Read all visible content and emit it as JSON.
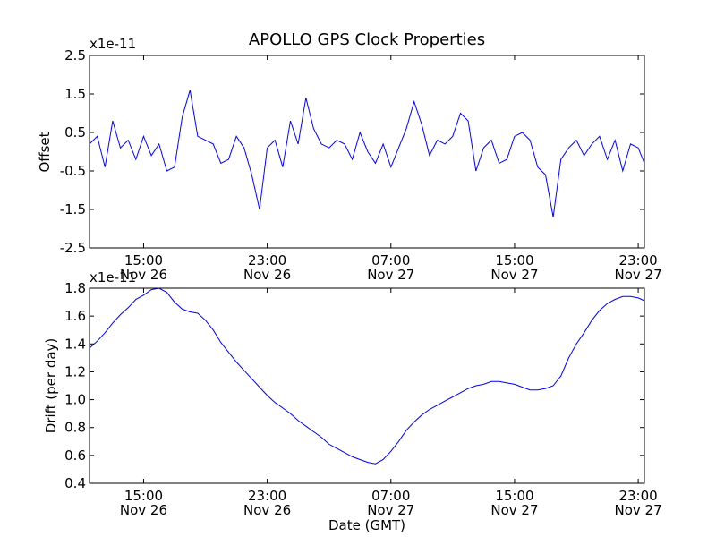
{
  "chart_data": [
    {
      "type": "line",
      "title": "APOLLO GPS Clock Properties",
      "ylabel": "Offset",
      "xlabel": "",
      "y_multiplier": "x1e-11",
      "x_ticks": [
        {
          "value": 15,
          "time": "15:00",
          "date": "Nov 26"
        },
        {
          "value": 23,
          "time": "23:00",
          "date": "Nov 26"
        },
        {
          "value": 31,
          "time": "07:00",
          "date": "Nov 27"
        },
        {
          "value": 39,
          "time": "15:00",
          "date": "Nov 27"
        },
        {
          "value": 47,
          "time": "23:00",
          "date": "Nov 27"
        }
      ],
      "xlim": [
        11.5,
        47.4
      ],
      "ylim": [
        -2.5,
        2.5
      ],
      "y_ticks": [
        "-2.5",
        "-1.5",
        "-0.5",
        "0.5",
        "1.5",
        "2.5"
      ],
      "y_tick_values": [
        -2.5,
        -1.5,
        -0.5,
        0.5,
        1.5,
        2.5
      ],
      "color": "#0000ff",
      "series": [
        {
          "x": [
            11.5,
            12.0,
            12.5,
            13.0,
            13.5,
            14.0,
            14.5,
            15.0,
            15.5,
            16.0,
            16.5,
            17.0,
            17.5,
            18.0,
            18.5,
            19.0,
            19.5,
            20.0,
            20.5,
            21.0,
            21.5,
            22.0,
            22.5,
            23.0,
            23.5,
            24.0,
            24.5,
            25.0,
            25.5,
            26.0,
            26.5,
            27.0,
            27.5,
            28.0,
            28.5,
            29.0,
            29.5,
            30.0,
            30.5,
            31.0,
            31.5,
            32.0,
            32.5,
            33.0,
            33.5,
            34.0,
            34.5,
            35.0,
            35.5,
            36.0,
            36.5,
            37.0,
            37.5,
            38.0,
            38.5,
            39.0,
            39.5,
            40.0,
            40.5,
            41.0,
            41.5,
            42.0,
            42.5,
            43.0,
            43.5,
            44.0,
            44.5,
            45.0,
            45.5,
            46.0,
            46.5,
            47.0,
            47.4
          ],
          "values": [
            0.2,
            0.4,
            -0.4,
            0.8,
            0.1,
            0.3,
            -0.2,
            0.4,
            -0.1,
            0.2,
            -0.5,
            -0.4,
            0.9,
            1.6,
            0.4,
            0.3,
            0.2,
            -0.3,
            -0.2,
            0.4,
            0.1,
            -0.6,
            -1.5,
            0.1,
            0.3,
            -0.4,
            0.8,
            0.2,
            1.4,
            0.6,
            0.2,
            0.1,
            0.3,
            0.2,
            -0.2,
            0.5,
            0.0,
            -0.3,
            0.2,
            -0.4,
            0.1,
            0.6,
            1.3,
            0.7,
            -0.1,
            0.3,
            0.2,
            0.4,
            1.0,
            0.8,
            -0.5,
            0.1,
            0.3,
            -0.3,
            -0.2,
            0.4,
            0.5,
            0.3,
            -0.4,
            -0.6,
            -1.7,
            -0.2,
            0.1,
            0.3,
            -0.1,
            0.2,
            0.4,
            -0.2,
            0.3,
            -0.5,
            0.2,
            0.1,
            -0.3
          ]
        }
      ]
    },
    {
      "type": "line",
      "title": "",
      "ylabel": "Drift (per day)",
      "xlabel": "Date (GMT)",
      "y_multiplier": "x1e-11",
      "x_ticks": [
        {
          "value": 15,
          "time": "15:00",
          "date": "Nov 26"
        },
        {
          "value": 23,
          "time": "23:00",
          "date": "Nov 26"
        },
        {
          "value": 31,
          "time": "07:00",
          "date": "Nov 27"
        },
        {
          "value": 39,
          "time": "15:00",
          "date": "Nov 27"
        },
        {
          "value": 47,
          "time": "23:00",
          "date": "Nov 27"
        }
      ],
      "xlim": [
        11.5,
        47.4
      ],
      "ylim": [
        0.4,
        1.8
      ],
      "y_ticks": [
        "0.4",
        "0.6",
        "0.8",
        "1.0",
        "1.2",
        "1.4",
        "1.6",
        "1.8"
      ],
      "y_tick_values": [
        0.4,
        0.6,
        0.8,
        1.0,
        1.2,
        1.4,
        1.6,
        1.8
      ],
      "color": "#0000ff",
      "series": [
        {
          "x": [
            11.5,
            12.0,
            12.5,
            13.0,
            13.5,
            14.0,
            14.5,
            15.0,
            15.5,
            16.0,
            16.5,
            17.0,
            17.5,
            18.0,
            18.5,
            19.0,
            19.5,
            20.0,
            20.5,
            21.0,
            21.5,
            22.0,
            22.5,
            23.0,
            23.5,
            24.0,
            24.5,
            25.0,
            25.5,
            26.0,
            26.5,
            27.0,
            27.5,
            28.0,
            28.5,
            29.0,
            29.5,
            30.0,
            30.5,
            31.0,
            31.5,
            32.0,
            32.5,
            33.0,
            33.5,
            34.0,
            34.5,
            35.0,
            35.5,
            36.0,
            36.5,
            37.0,
            37.5,
            38.0,
            38.5,
            39.0,
            39.5,
            40.0,
            40.5,
            41.0,
            41.5,
            42.0,
            42.5,
            43.0,
            43.5,
            44.0,
            44.5,
            45.0,
            45.5,
            46.0,
            46.5,
            47.0,
            47.4
          ],
          "values": [
            1.37,
            1.42,
            1.48,
            1.55,
            1.61,
            1.66,
            1.72,
            1.75,
            1.79,
            1.8,
            1.77,
            1.7,
            1.65,
            1.63,
            1.62,
            1.57,
            1.5,
            1.41,
            1.34,
            1.27,
            1.21,
            1.15,
            1.09,
            1.03,
            0.98,
            0.94,
            0.9,
            0.85,
            0.81,
            0.77,
            0.73,
            0.68,
            0.65,
            0.62,
            0.59,
            0.57,
            0.55,
            0.54,
            0.57,
            0.63,
            0.7,
            0.78,
            0.84,
            0.89,
            0.93,
            0.96,
            0.99,
            1.02,
            1.05,
            1.08,
            1.1,
            1.11,
            1.13,
            1.13,
            1.12,
            1.11,
            1.09,
            1.07,
            1.07,
            1.08,
            1.1,
            1.17,
            1.3,
            1.4,
            1.48,
            1.57,
            1.64,
            1.69,
            1.72,
            1.74,
            1.74,
            1.73,
            1.71
          ]
        }
      ]
    }
  ]
}
